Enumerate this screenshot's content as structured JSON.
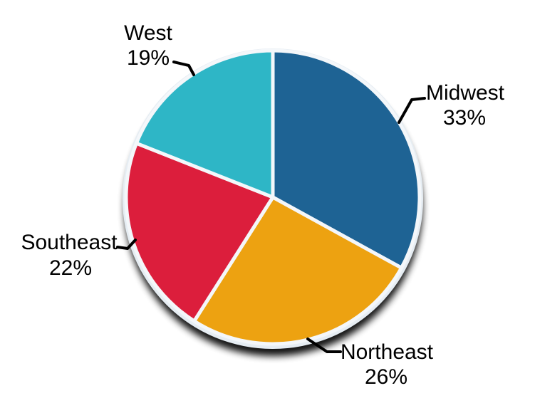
{
  "chart_data": {
    "type": "pie",
    "title": "",
    "categories": [
      "Midwest",
      "Northeast",
      "Southeast",
      "West"
    ],
    "values": [
      33,
      26,
      22,
      19
    ],
    "unit": "%",
    "direction": "clockwise",
    "start_angle": "top",
    "legend_position": "outside-callout-labels",
    "slices": [
      {
        "label": "Midwest",
        "value": 33,
        "pct_label": "33%",
        "color": "#1E6394"
      },
      {
        "label": "Northeast",
        "value": 26,
        "pct_label": "26%",
        "color": "#EDA211"
      },
      {
        "label": "Southeast",
        "value": 22,
        "pct_label": "22%",
        "color": "#DC1E3C"
      },
      {
        "label": "West",
        "value": 19,
        "pct_label": "19%",
        "color": "#2EB6C6"
      }
    ],
    "colors": {
      "ring": "#E6EDF3",
      "slice_gap": "#F4F7FA",
      "shadow": "#000000",
      "label_text": "#000000",
      "background": "#FFFFFF"
    }
  }
}
